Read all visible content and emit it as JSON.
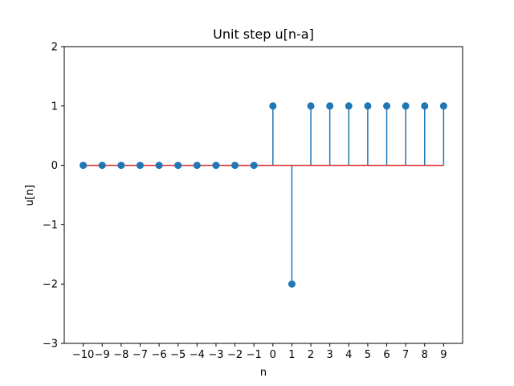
{
  "chart_data": {
    "type": "stem",
    "title": "Unit step u[n-a]",
    "xlabel": "n",
    "ylabel": "u[n]",
    "x": [
      -10,
      -9,
      -8,
      -7,
      -6,
      -5,
      -4,
      -3,
      -2,
      -1,
      0,
      1,
      2,
      3,
      4,
      5,
      6,
      7,
      8,
      9
    ],
    "values": [
      0,
      0,
      0,
      0,
      0,
      0,
      0,
      0,
      0,
      0,
      1,
      -2,
      1,
      1,
      1,
      1,
      1,
      1,
      1,
      1
    ],
    "x_ticks": [
      -10,
      -9,
      -8,
      -7,
      -6,
      -5,
      -4,
      -3,
      -2,
      -1,
      0,
      1,
      2,
      3,
      4,
      5,
      6,
      7,
      8,
      9
    ],
    "y_ticks": [
      -3,
      -2,
      -1,
      0,
      1,
      2
    ],
    "xlim": [
      -11,
      10
    ],
    "ylim": [
      -3,
      2
    ],
    "grid": false,
    "colors": {
      "stem": "#1f77b4",
      "marker": "#1f77b4",
      "baseline": "#d62728",
      "axes": "#000000"
    }
  }
}
